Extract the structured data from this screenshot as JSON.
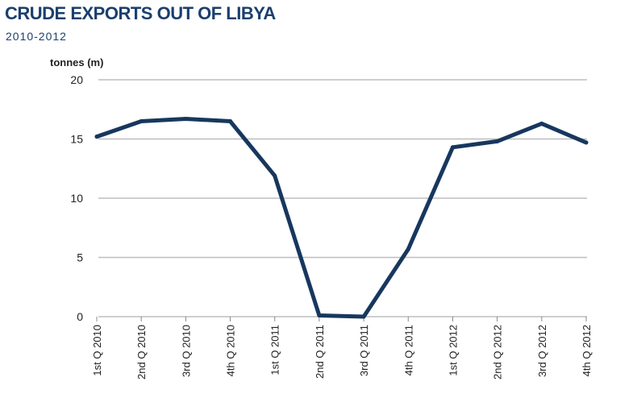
{
  "chart_data": {
    "type": "line",
    "title": "CRUDE EXPORTS OUT OF LIBYA",
    "subtitle": "2010-2012",
    "ylabel": "tonnes (m)",
    "xlabel": "",
    "ylim": [
      0,
      20
    ],
    "yticks": [
      0,
      5,
      10,
      15,
      20
    ],
    "grid": true,
    "categories": [
      "1st Q 2010",
      "2nd Q 2010",
      "3rd Q 2010",
      "4th Q 2010",
      "1st Q 2011",
      "2nd Q 2011",
      "3rd Q 2011",
      "4th Q 2011",
      "1st Q 2012",
      "2nd Q 2012",
      "3rd Q 2012",
      "4th Q 2012"
    ],
    "series": [
      {
        "values": [
          15.2,
          16.5,
          16.7,
          16.5,
          11.9,
          0.1,
          0.0,
          5.7,
          14.3,
          14.8,
          16.3,
          14.7
        ]
      }
    ],
    "colors": {
      "line": "#17375e",
      "grid": "#bdbdbd",
      "title": "#1b3f6e"
    }
  }
}
